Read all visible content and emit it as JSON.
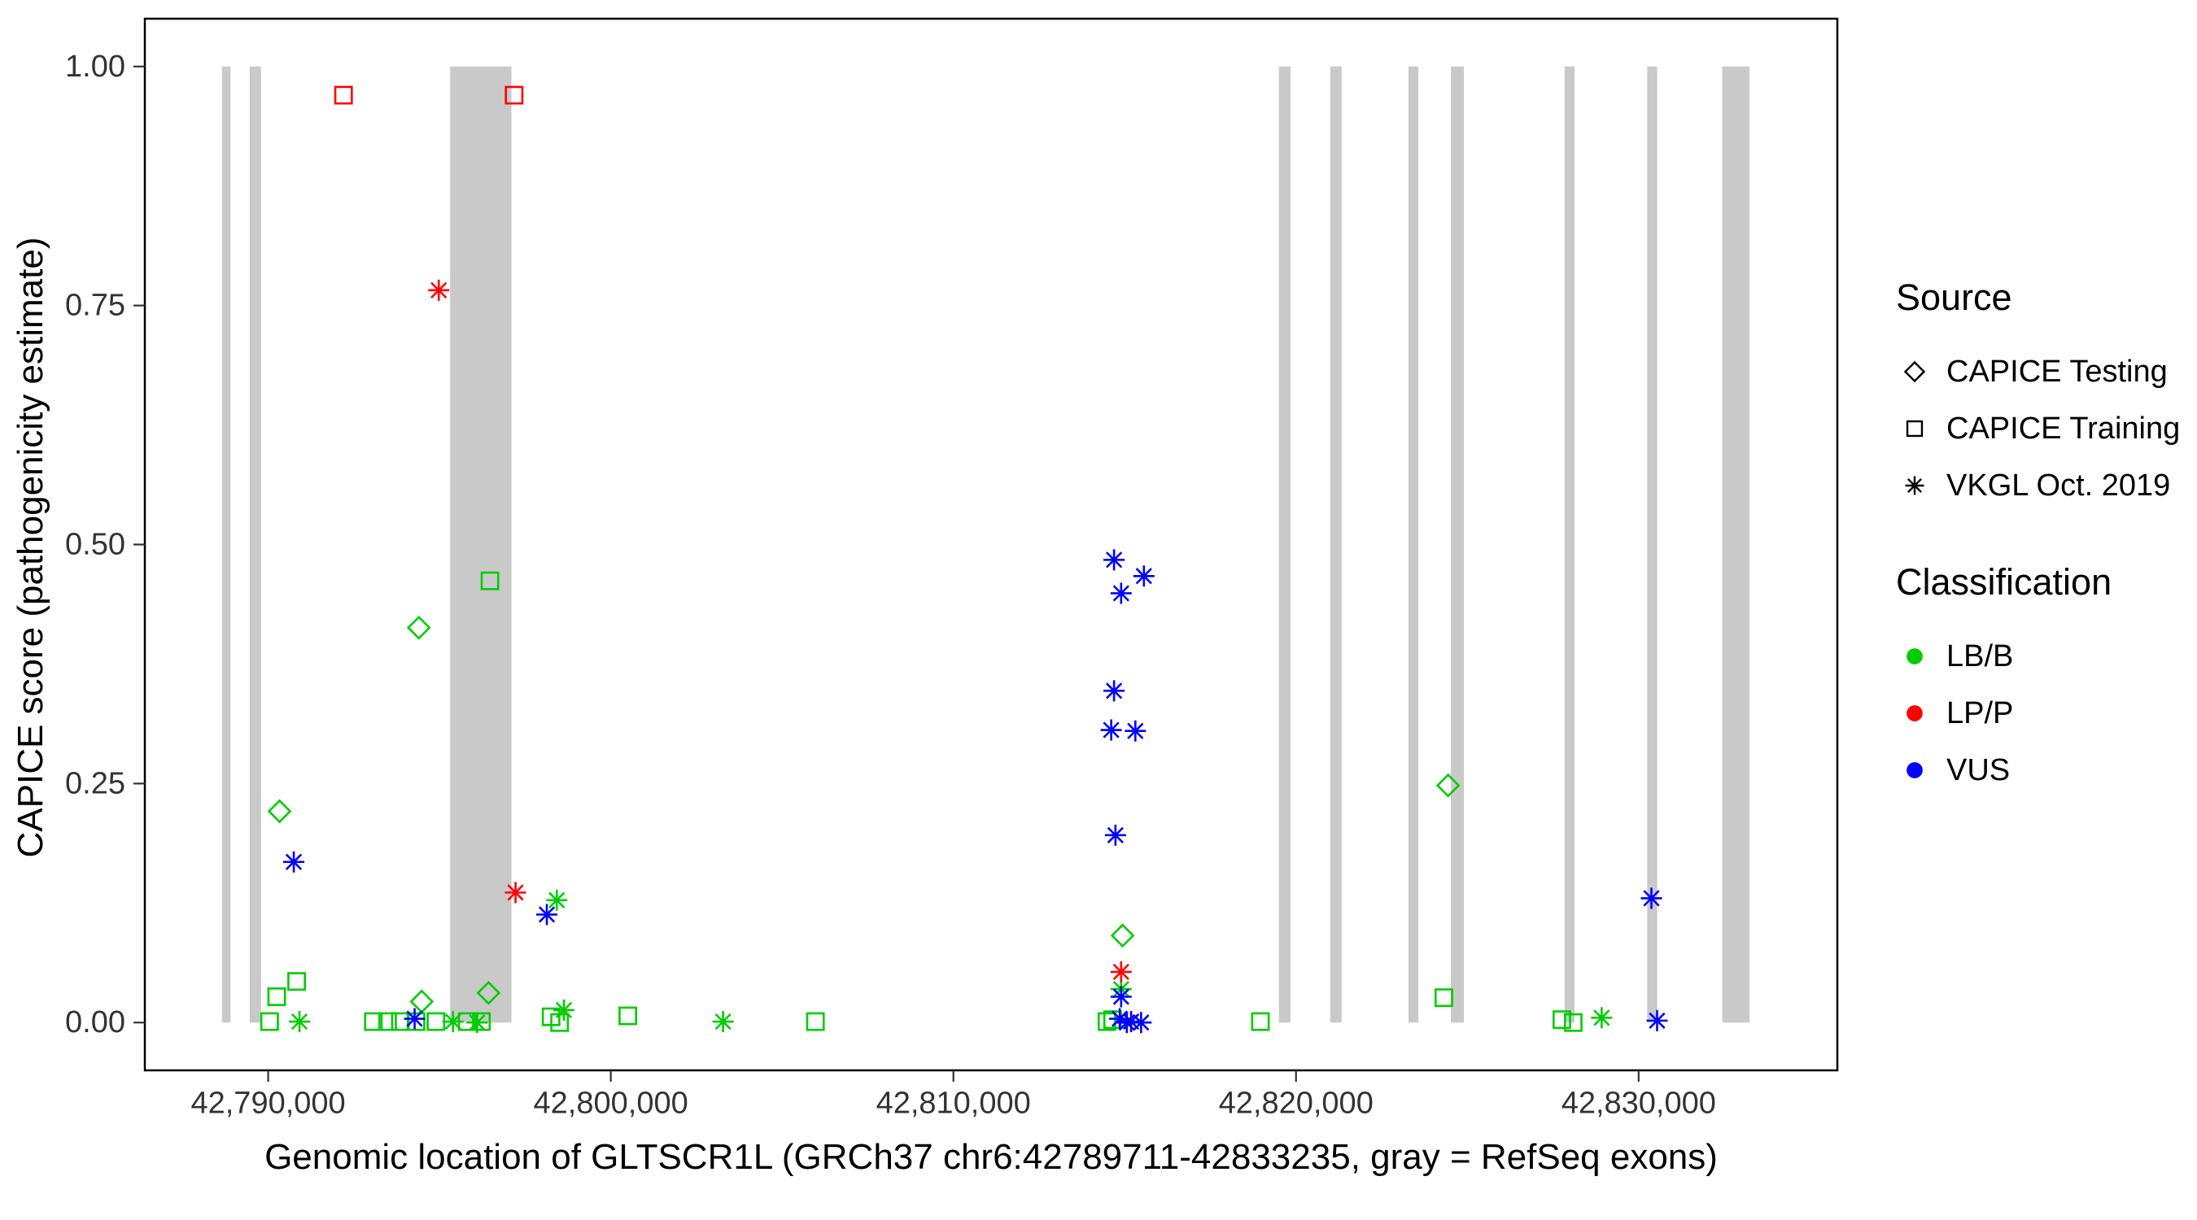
{
  "figure": {
    "xlabel": "Genomic location of GLTSCR1L (GRCh37 chr6:42789711-42833235, gray = RefSeq exons)",
    "ylabel": "CAPICE score (pathogenicity estimate)"
  },
  "legend": {
    "source": {
      "title": "Source",
      "items": [
        {
          "label": "CAPICE Testing",
          "shape": "diamond"
        },
        {
          "label": "CAPICE Training",
          "shape": "square"
        },
        {
          "label": "VKGL Oct. 2019",
          "shape": "asterisk"
        }
      ]
    },
    "classification": {
      "title": "Classification",
      "items": [
        {
          "label": "LB/B",
          "color": "#00CD00"
        },
        {
          "label": "LP/P",
          "color": "#FF0000"
        },
        {
          "label": "VUS",
          "color": "#0000FF"
        }
      ]
    }
  },
  "colors": {
    "exon": "#C9C9C9",
    "lbb": "#00CD00",
    "lpp": "#FF0000",
    "vus": "#0000FF",
    "axis_text": "#333333",
    "axis_line": "#333333",
    "panel_border": "#000000"
  },
  "chart_data": {
    "type": "scatter",
    "title": "",
    "xlabel": "Genomic location of GLTSCR1L (GRCh37 chr6:42789711-42833235, gray = RefSeq exons)",
    "ylabel": "CAPICE score (pathogenicity estimate)",
    "grid": false,
    "legend_position": "right",
    "xlim": [
      42786400,
      42835800
    ],
    "ylim": [
      -0.05,
      1.05
    ],
    "x_ticks": [
      {
        "value": 42790000,
        "label": "42,790,000"
      },
      {
        "value": 42800000,
        "label": "42,800,000"
      },
      {
        "value": 42810000,
        "label": "42,810,000"
      },
      {
        "value": 42820000,
        "label": "42,820,000"
      },
      {
        "value": 42830000,
        "label": "42,830,000"
      }
    ],
    "y_ticks": [
      {
        "value": 0.0,
        "label": "0.00"
      },
      {
        "value": 0.25,
        "label": "0.25"
      },
      {
        "value": 0.5,
        "label": "0.50"
      },
      {
        "value": 0.75,
        "label": "0.75"
      },
      {
        "value": 1.0,
        "label": "1.00"
      }
    ],
    "exons": [
      [
        42788650,
        42788900
      ],
      [
        42789460,
        42789790
      ],
      [
        42795310,
        42797100
      ],
      [
        42819500,
        42819840
      ],
      [
        42821000,
        42821330
      ],
      [
        42823280,
        42823570
      ],
      [
        42824520,
        42824900
      ],
      [
        42827840,
        42828130
      ],
      [
        42830250,
        42830540
      ],
      [
        42832440,
        42833235
      ]
    ],
    "series": [
      {
        "name": "CAPICE Testing / LB/B",
        "source": "CAPICE Testing",
        "classification": "LB/B",
        "shape": "diamond",
        "color": "#00CD00",
        "points": [
          [
            42790332,
            0.221
          ],
          [
            42794398,
            0.413
          ],
          [
            42794481,
            0.022
          ],
          [
            42796431,
            0.031
          ],
          [
            42814938,
            0.091
          ],
          [
            42824440,
            0.248
          ]
        ]
      },
      {
        "name": "CAPICE Training / LB/B",
        "source": "CAPICE Training",
        "classification": "LB/B",
        "shape": "square",
        "color": "#00CD00",
        "points": [
          [
            42790041,
            0.001
          ],
          [
            42790249,
            0.027
          ],
          [
            42790830,
            0.043
          ],
          [
            42793070,
            0.001
          ],
          [
            42793485,
            0.001
          ],
          [
            42793858,
            0.001
          ],
          [
            42794315,
            0.001
          ],
          [
            42794896,
            0.001
          ],
          [
            42795809,
            0.001
          ],
          [
            42796224,
            0.001
          ],
          [
            42796473,
            0.462
          ],
          [
            42798257,
            0.006
          ],
          [
            42798506,
            0.0
          ],
          [
            42800497,
            0.007
          ],
          [
            42805973,
            0.001
          ],
          [
            42814481,
            0.001
          ],
          [
            42814647,
            0.003
          ],
          [
            42818961,
            0.001
          ],
          [
            42824315,
            0.026
          ],
          [
            42827759,
            0.003
          ],
          [
            42828091,
            0.0
          ]
        ]
      },
      {
        "name": "CAPICE Training / LP/P",
        "source": "CAPICE Training",
        "classification": "LP/P",
        "shape": "square",
        "color": "#FF0000",
        "points": [
          [
            42792199,
            0.97
          ],
          [
            42797178,
            0.97
          ]
        ]
      },
      {
        "name": "VKGL Oct. 2019 / LB/B",
        "source": "VKGL Oct. 2019",
        "classification": "LB/B",
        "shape": "asterisk",
        "color": "#00CD00",
        "points": [
          [
            42790913,
            0.001
          ],
          [
            42795394,
            0.001
          ],
          [
            42796100,
            0.0
          ],
          [
            42798423,
            0.128
          ],
          [
            42798631,
            0.013
          ],
          [
            42803277,
            0.001
          ],
          [
            42814896,
            0.035
          ],
          [
            42828921,
            0.005
          ]
        ]
      },
      {
        "name": "VKGL Oct. 2019 / LP/P",
        "source": "VKGL Oct. 2019",
        "classification": "LP/P",
        "shape": "asterisk",
        "color": "#FF0000",
        "points": [
          [
            42794979,
            0.766
          ],
          [
            42797220,
            0.136
          ],
          [
            42814896,
            0.053
          ]
        ]
      },
      {
        "name": "VKGL Oct. 2019 / VUS",
        "source": "VKGL Oct. 2019",
        "classification": "VUS",
        "shape": "asterisk",
        "color": "#0000FF",
        "points": [
          [
            42790747,
            0.168
          ],
          [
            42794274,
            0.004
          ],
          [
            42798133,
            0.113
          ],
          [
            42814689,
            0.484
          ],
          [
            42814896,
            0.449
          ],
          [
            42815560,
            0.467
          ],
          [
            42814689,
            0.347
          ],
          [
            42814606,
            0.306
          ],
          [
            42815311,
            0.305
          ],
          [
            42814730,
            0.196
          ],
          [
            42814896,
            0.027
          ],
          [
            42814855,
            0.004
          ],
          [
            42815187,
            0.001
          ],
          [
            42815478,
            0.0
          ],
          [
            42815062,
            0.0
          ],
          [
            42830373,
            0.13
          ],
          [
            42830539,
            0.002
          ]
        ]
      }
    ]
  }
}
